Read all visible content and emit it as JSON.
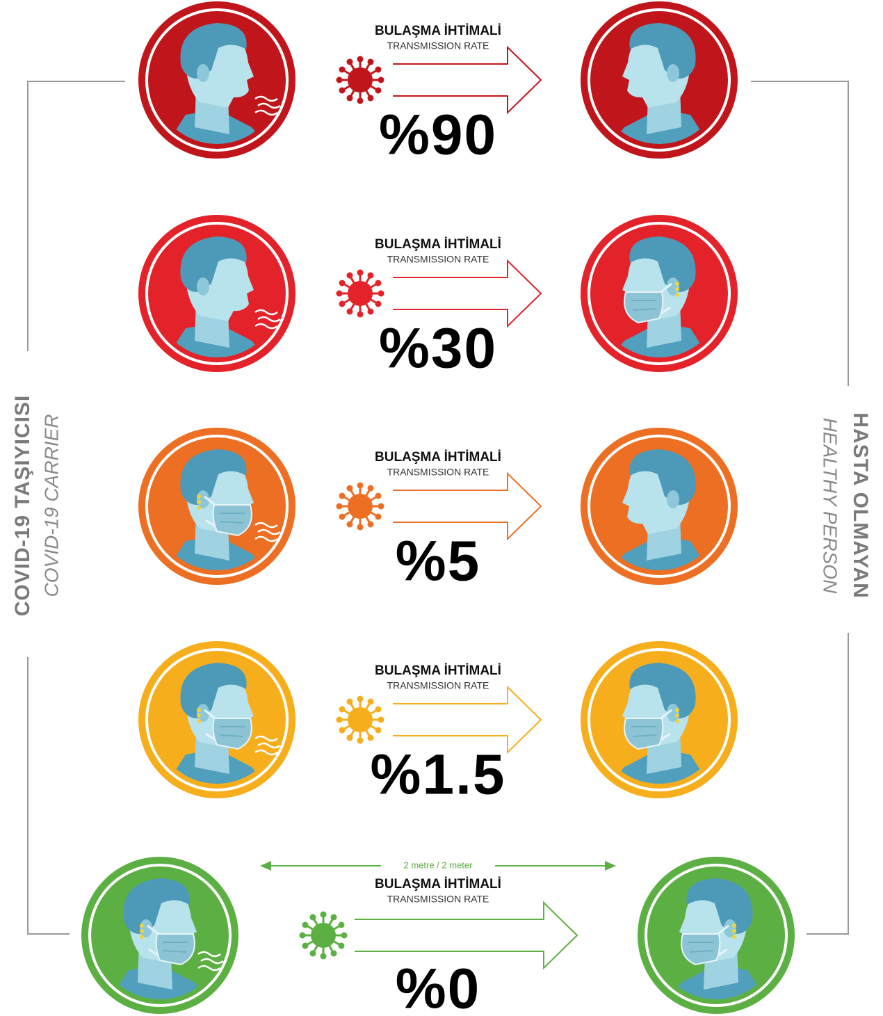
{
  "left_label": {
    "title": "COVID-19 TAŞIYICISI",
    "subtitle": "COVID-19 CARRIER"
  },
  "right_label": {
    "title": "HASTA OLMAYAN",
    "subtitle": "HEALTHY PERSON"
  },
  "distance_label": "2 metre / 2 meter",
  "rows": [
    {
      "label": "BULAŞMA İHTİMALİ",
      "sublabel": "TRANSMISSION RATE",
      "rate": "%90"
    },
    {
      "label": "BULAŞMA İHTİMALİ",
      "sublabel": "TRANSMISSION RATE",
      "rate": "%30"
    },
    {
      "label": "BULAŞMA İHTİMALİ",
      "sublabel": "TRANSMISSION RATE",
      "rate": "%5"
    },
    {
      "label": "BULAŞMA İHTİMALİ",
      "sublabel": "TRANSMISSION RATE",
      "rate": "%1.5"
    },
    {
      "label": "BULAŞMA İHTİMALİ",
      "sublabel": "TRANSMISSION RATE",
      "rate": "%0"
    }
  ]
}
